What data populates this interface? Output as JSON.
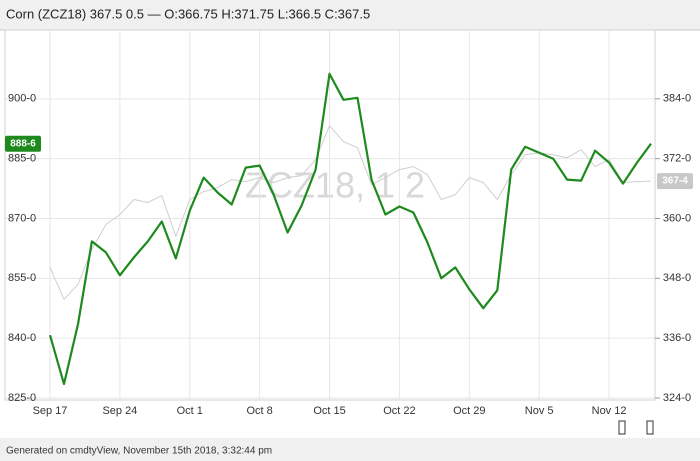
{
  "chart_data": {
    "type": "line",
    "title": "Corn (ZCZ18) 367.5 0.5 — O:366.75 H:371.75 L:366.5 C:367.5",
    "watermark": "ZCZ18, 1 2",
    "footer": "Generated on cmdtyView, November 15th 2018, 3:32:44 pm",
    "categories": [
      "Sep 17",
      null,
      null,
      null,
      null,
      "Sep 24",
      null,
      null,
      null,
      null,
      "Oct 1",
      null,
      null,
      null,
      null,
      "Oct 8",
      null,
      null,
      null,
      null,
      "Oct 15",
      null,
      null,
      null,
      null,
      "Oct 22",
      null,
      null,
      null,
      null,
      "Oct 29",
      null,
      null,
      null,
      null,
      "Nov 5",
      null,
      null,
      null,
      null,
      "Nov 12",
      null,
      null,
      null
    ],
    "ylim": [
      824.5,
      917.25
    ],
    "yticks": [
      {
        "value": 825,
        "label": "825-0"
      },
      {
        "value": 840,
        "label": "840-0"
      },
      {
        "value": 855,
        "label": "855-0"
      },
      {
        "value": 870,
        "label": "870-0"
      },
      {
        "value": 885,
        "label": "885-0"
      },
      {
        "value": 900,
        "label": "900-0"
      }
    ],
    "y2lim": [
      323.6,
      397.8
    ],
    "y2ticks": [
      {
        "value": 324,
        "label": "324-0"
      },
      {
        "value": 336,
        "label": "336-0"
      },
      {
        "value": 348,
        "label": "348-0"
      },
      {
        "value": 360,
        "label": "360-0"
      },
      {
        "value": 372,
        "label": "372-0"
      },
      {
        "value": 384,
        "label": "384-0"
      }
    ],
    "grid": true,
    "series": [
      {
        "color": "#1e8a1e",
        "last_label": "888-6",
        "values": [
          840.75,
          828.5,
          843.5,
          864.25,
          861.5,
          855.75,
          860.25,
          864.25,
          869.25,
          860,
          872,
          880.25,
          876.5,
          873.5,
          882.75,
          883.25,
          876,
          866.5,
          873.25,
          882.25,
          906.25,
          899.75,
          900.25,
          879.75,
          871,
          873,
          871.5,
          864,
          855,
          857.75,
          852.25,
          847.5,
          852,
          882.25,
          888,
          886.5,
          885,
          879.75,
          879.5,
          887,
          884,
          878.75,
          884,
          888.75
        ]
      },
      {
        "color": "#cfcfcf",
        "axis": "y2",
        "last_label": "367-4",
        "values": [
          350.2,
          343.8,
          346.8,
          353.8,
          358.8,
          360.8,
          363.8,
          363.2,
          364.6,
          356.4,
          363.8,
          365.4,
          366.2,
          367.8,
          367.4,
          368.2,
          367.2,
          368.2,
          368.6,
          371.8,
          378.6,
          375.4,
          374.2,
          366.8,
          368.2,
          369.8,
          370.4,
          368.8,
          363.8,
          364.8,
          368.2,
          367.2,
          363.8,
          368.8,
          372.8,
          373.2,
          372.8,
          372.2,
          373.8,
          370.4,
          371.8,
          367.2,
          367.4,
          367.5
        ]
      }
    ]
  }
}
